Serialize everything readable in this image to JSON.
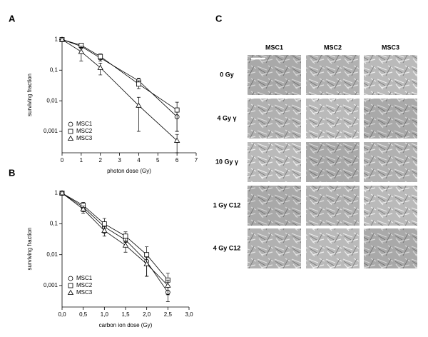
{
  "chart_data": [
    {
      "type": "scatter",
      "panel": "A",
      "xlabel": "photon dose (Gy)",
      "ylabel": "surviving fraction",
      "log_y": true,
      "x": [
        0,
        1,
        2,
        4,
        6
      ],
      "xlim": [
        0,
        7
      ],
      "xticks": [
        0,
        1,
        2,
        3,
        4,
        5,
        6,
        7
      ],
      "ylim": [
        0.0002,
        1.2
      ],
      "yticks": [
        {
          "value": 0.001,
          "label": "0,001"
        },
        {
          "value": 0.01,
          "label": "0,01"
        },
        {
          "value": 0.1,
          "label": "0,1"
        },
        1
      ],
      "legend": "lower-left",
      "series": [
        {
          "name": "MSC1",
          "marker": "circle",
          "color": "#000000",
          "values": [
            1,
            0.6,
            0.25,
            0.045,
            0.003
          ],
          "errors": [
            0.05,
            0.1,
            0.05,
            0.01,
            0.002
          ]
        },
        {
          "name": "MSC2",
          "marker": "square",
          "color": "#000000",
          "values": [
            1,
            0.65,
            0.28,
            0.035,
            0.005
          ],
          "errors": [
            0.05,
            0.1,
            0.06,
            0.01,
            0.004
          ]
        },
        {
          "name": "MSC3",
          "marker": "triangle",
          "color": "#000000",
          "values": [
            1,
            0.4,
            0.12,
            0.007,
            0.0005
          ],
          "errors": [
            0.05,
            0.2,
            0.05,
            0.006,
            0.0003
          ]
        }
      ]
    },
    {
      "type": "scatter",
      "panel": "B",
      "xlabel": "carbon ion dose (Gy)",
      "ylabel": "surviving fraction",
      "log_y": true,
      "x": [
        0,
        0.5,
        1,
        1.5,
        2,
        2.5
      ],
      "xlim": [
        0,
        3
      ],
      "xticks": [
        {
          "value": 0,
          "label": "0,0"
        },
        {
          "value": 0.5,
          "label": "0,5"
        },
        {
          "value": 1,
          "label": "1,0"
        },
        {
          "value": 1.5,
          "label": "1,5"
        },
        {
          "value": 2,
          "label": "2,0"
        },
        {
          "value": 2.5,
          "label": "2,5"
        },
        {
          "value": 3,
          "label": "3,0"
        }
      ],
      "ylim": [
        0.0002,
        1.2
      ],
      "yticks": [
        {
          "value": 0.001,
          "label": "0,001"
        },
        {
          "value": 0.01,
          "label": "0,01"
        },
        {
          "value": 0.1,
          "label": "0,1"
        },
        1
      ],
      "legend": "lower-left",
      "series": [
        {
          "name": "MSC1",
          "marker": "circle",
          "color": "#000000",
          "values": [
            1,
            0.35,
            0.08,
            0.03,
            0.006,
            0.0006
          ],
          "errors": [
            0.1,
            0.1,
            0.03,
            0.01,
            0.004,
            0.0003
          ]
        },
        {
          "name": "MSC2",
          "marker": "square",
          "color": "#000000",
          "values": [
            1,
            0.4,
            0.1,
            0.04,
            0.01,
            0.0015
          ],
          "errors": [
            0.1,
            0.1,
            0.05,
            0.015,
            0.008,
            0.001
          ]
        },
        {
          "name": "MSC3",
          "marker": "triangle",
          "color": "#000000",
          "values": [
            1,
            0.3,
            0.06,
            0.02,
            0.005,
            0.001
          ],
          "errors": [
            0.1,
            0.08,
            0.02,
            0.008,
            0.003,
            0.0005
          ]
        }
      ]
    }
  ],
  "panel_c": {
    "label": "C",
    "columns": [
      "MSC1",
      "MSC2",
      "MSC3"
    ],
    "rows": [
      "0 Gy",
      "4 Gy γ",
      "10 Gy γ",
      "1 Gy C12",
      "4 Gy C12"
    ]
  }
}
